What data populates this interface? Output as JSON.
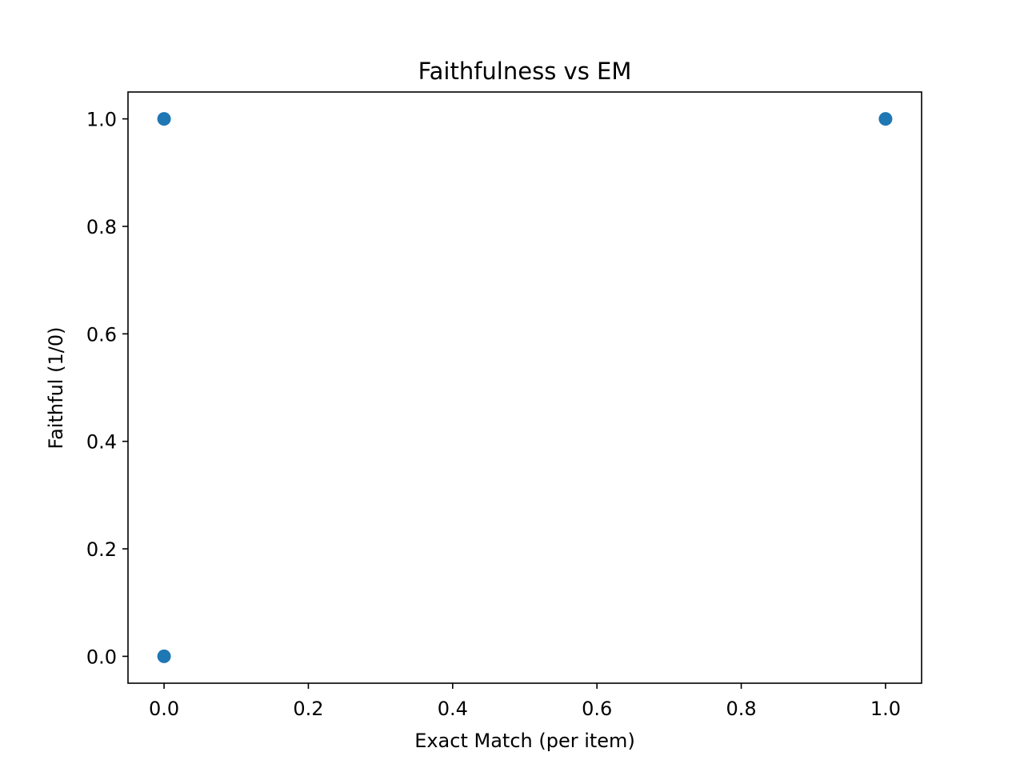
{
  "chart_data": {
    "type": "scatter",
    "title": "Faithfulness vs EM",
    "xlabel": "Exact Match (per item)",
    "ylabel": "Faithful (1/0)",
    "xlim": [
      -0.05,
      1.05
    ],
    "ylim": [
      -0.05,
      1.05
    ],
    "xticks": [
      0.0,
      0.2,
      0.4,
      0.6,
      0.8,
      1.0
    ],
    "xtick_labels": [
      "0.0",
      "0.2",
      "0.4",
      "0.6",
      "0.8",
      "1.0"
    ],
    "yticks": [
      0.0,
      0.2,
      0.4,
      0.6,
      0.8,
      1.0
    ],
    "ytick_labels": [
      "0.0",
      "0.2",
      "0.4",
      "0.6",
      "0.8",
      "1.0"
    ],
    "grid": false,
    "legend": "none",
    "marker_color": "#1f77b4",
    "points": [
      {
        "x": 0.0,
        "y": 1.0
      },
      {
        "x": 0.0,
        "y": 0.0
      },
      {
        "x": 1.0,
        "y": 1.0
      }
    ]
  }
}
